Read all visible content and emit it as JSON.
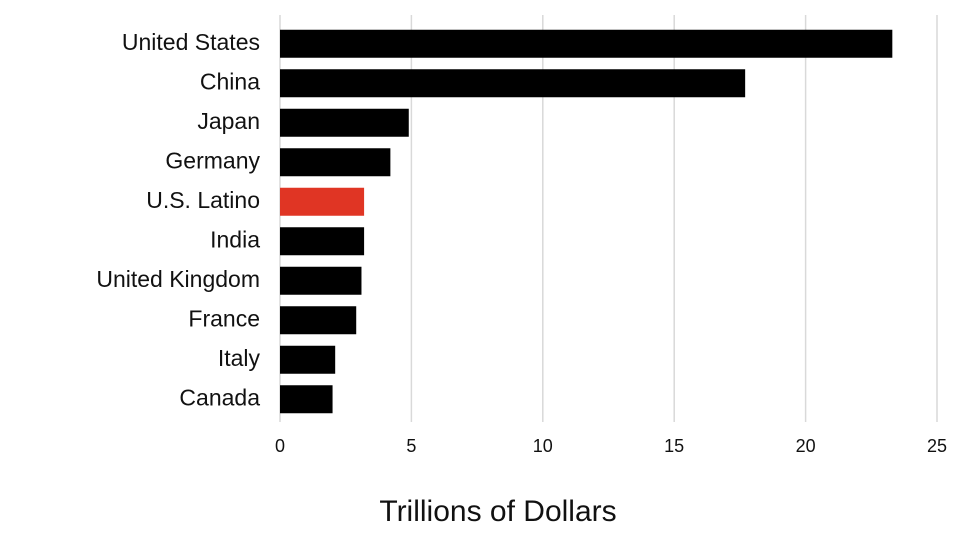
{
  "chart_data": {
    "type": "bar",
    "orientation": "horizontal",
    "xlabel": "Trillions of Dollars",
    "categories": [
      "United States",
      "China",
      "Japan",
      "Germany",
      "U.S. Latino",
      "India",
      "United Kingdom",
      "France",
      "Italy",
      "Canada"
    ],
    "values": [
      23.3,
      17.7,
      4.9,
      4.2,
      3.2,
      3.2,
      3.1,
      2.9,
      2.1,
      2.0
    ],
    "colors": [
      "#000000",
      "#000000",
      "#000000",
      "#000000",
      "#e03524",
      "#000000",
      "#000000",
      "#000000",
      "#000000",
      "#000000"
    ],
    "xlim": [
      0,
      25
    ],
    "xticks": [
      0,
      5,
      10,
      15,
      20,
      25
    ],
    "grid": true
  }
}
